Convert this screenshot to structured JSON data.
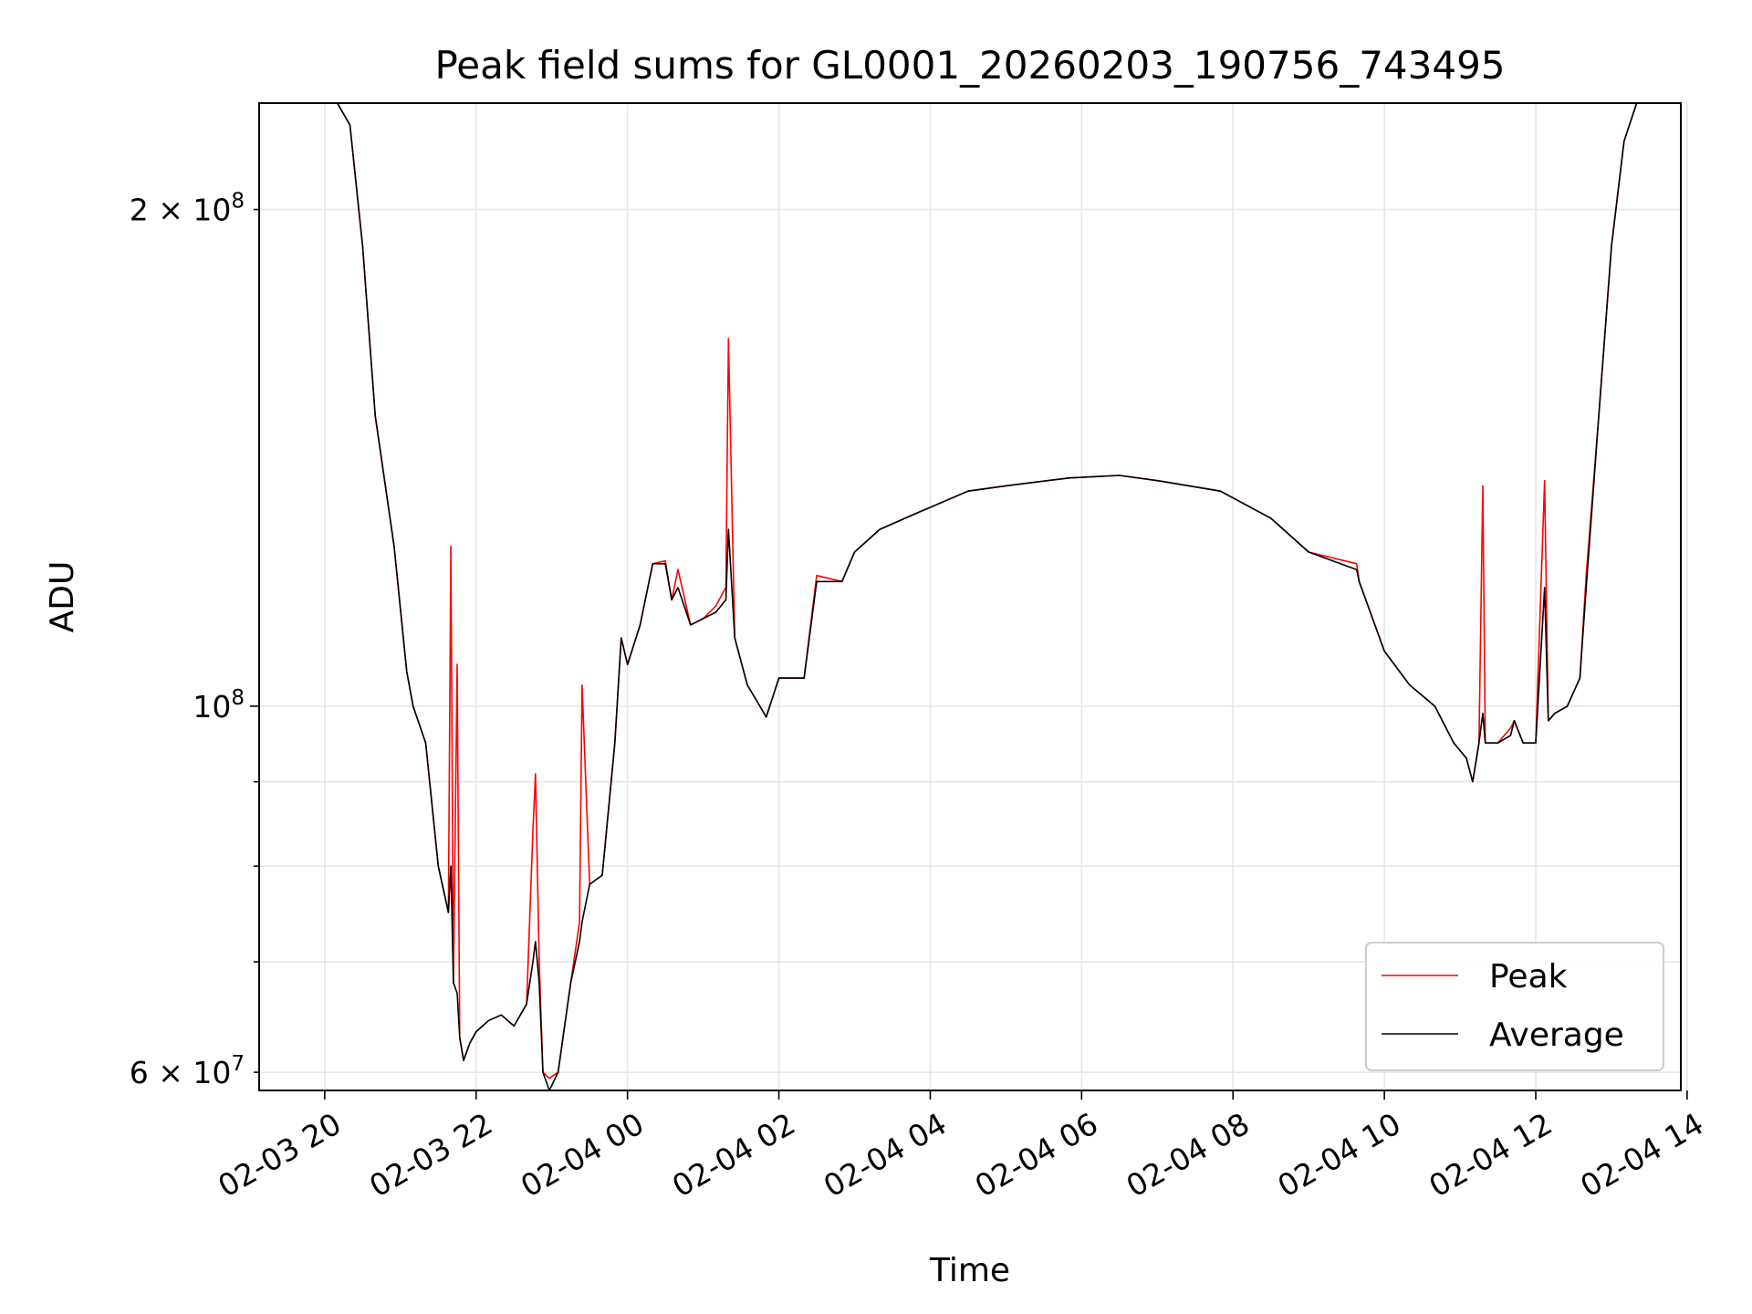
{
  "chart_data": {
    "type": "line",
    "title": "Peak field sums for GL0001_20260203_190756_743495",
    "xlabel": "Time",
    "ylabel": "ADU",
    "yscale": "log",
    "grid": true,
    "legend_position": "lower right",
    "xlim": [
      "2026-02-03 19:08",
      "2026-02-04 13:55"
    ],
    "ylim": [
      58500000,
      232000000
    ],
    "x_ticks": [
      "02-03 20",
      "02-03 22",
      "02-04 00",
      "02-04 02",
      "02-04 04",
      "02-04 06",
      "02-04 08",
      "02-04 10",
      "02-04 12",
      "02-04 14"
    ],
    "x_tick_values": [
      "2026-02-03 20:00",
      "2026-02-03 22:00",
      "2026-02-04 00:00",
      "2026-02-04 02:00",
      "2026-02-04 04:00",
      "2026-02-04 06:00",
      "2026-02-04 08:00",
      "2026-02-04 10:00",
      "2026-02-04 12:00",
      "2026-02-04 14:00"
    ],
    "y_major_ticks": [
      {
        "value": 100000000,
        "label_base": "10",
        "label_exp": "8"
      }
    ],
    "y_minor_ticks": [
      {
        "value": 60000000,
        "label_base": "6 × 10",
        "label_exp": "7"
      },
      {
        "value": 70000000
      },
      {
        "value": 80000000
      },
      {
        "value": 90000000
      },
      {
        "value": 200000000,
        "label_base": "2 × 10",
        "label_exp": "8"
      }
    ],
    "series": [
      {
        "name": "Peak",
        "color": "#ff0000",
        "x": [
          "2026-02-03 20:10",
          "2026-02-03 20:20",
          "2026-02-03 20:30",
          "2026-02-03 20:40",
          "2026-02-03 20:55",
          "2026-02-03 21:05",
          "2026-02-03 21:10",
          "2026-02-03 21:20",
          "2026-02-03 21:30",
          "2026-02-03 21:38",
          "2026-02-03 21:40",
          "2026-02-03 21:42",
          "2026-02-03 21:45",
          "2026-02-03 21:47",
          "2026-02-03 21:50",
          "2026-02-03 21:55",
          "2026-02-03 22:00",
          "2026-02-03 22:10",
          "2026-02-03 22:20",
          "2026-02-03 22:30",
          "2026-02-03 22:40",
          "2026-02-03 22:45",
          "2026-02-03 22:47",
          "2026-02-03 22:50",
          "2026-02-03 22:53",
          "2026-02-03 22:58",
          "2026-02-03 23:05",
          "2026-02-03 23:15",
          "2026-02-03 23:22",
          "2026-02-03 23:24",
          "2026-02-03 23:30",
          "2026-02-03 23:40",
          "2026-02-03 23:50",
          "2026-02-03 23:55",
          "2026-02-04 00:00",
          "2026-02-04 00:10",
          "2026-02-04 00:20",
          "2026-02-04 00:30",
          "2026-02-04 00:35",
          "2026-02-04 00:40",
          "2026-02-04 00:50",
          "2026-02-04 01:00",
          "2026-02-04 01:10",
          "2026-02-04 01:18",
          "2026-02-04 01:20",
          "2026-02-04 01:25",
          "2026-02-04 01:35",
          "2026-02-04 01:45",
          "2026-02-04 01:50",
          "2026-02-04 02:00",
          "2026-02-04 02:20",
          "2026-02-04 02:30",
          "2026-02-04 02:50",
          "2026-02-04 03:00",
          "2026-02-04 03:20",
          "2026-02-04 03:50",
          "2026-02-04 04:30",
          "2026-02-04 05:00",
          "2026-02-04 05:50",
          "2026-02-04 06:30",
          "2026-02-04 07:00",
          "2026-02-04 07:50",
          "2026-02-04 08:30",
          "2026-02-04 09:00",
          "2026-02-04 09:38",
          "2026-02-04 09:40",
          "2026-02-04 10:00",
          "2026-02-04 10:20",
          "2026-02-04 10:40",
          "2026-02-04 10:55",
          "2026-02-04 11:05",
          "2026-02-04 11:10",
          "2026-02-04 11:15",
          "2026-02-04 11:18",
          "2026-02-04 11:20",
          "2026-02-04 11:30",
          "2026-02-04 11:40",
          "2026-02-04 11:43",
          "2026-02-04 11:50",
          "2026-02-04 12:00",
          "2026-02-04 12:07",
          "2026-02-04 12:10",
          "2026-02-04 12:15",
          "2026-02-04 12:25",
          "2026-02-04 12:35",
          "2026-02-04 12:40",
          "2026-02-04 12:50",
          "2026-02-04 13:00",
          "2026-02-04 13:10",
          "2026-02-04 13:20",
          "2026-02-04 13:30",
          "2026-02-04 13:40",
          "2026-02-04 13:55"
        ],
        "y": [
          232000000,
          225000000,
          190000000,
          150000000,
          125000000,
          105000000,
          100000000,
          95000000,
          80000000,
          75000000,
          125000000,
          68000000,
          106000000,
          63000000,
          61000000,
          62500000,
          63500000,
          64500000,
          65000000,
          64000000,
          66000000,
          84000000,
          91000000,
          70000000,
          60000000,
          59500000,
          60000000,
          68000000,
          74000000,
          103000000,
          78000000,
          79000000,
          95000000,
          110000000,
          106000000,
          112000000,
          122000000,
          122500000,
          116000000,
          121000000,
          112000000,
          113000000,
          115000000,
          118000000,
          167000000,
          110000000,
          103000000,
          100000000,
          98500000,
          104000000,
          104000000,
          120000000,
          119000000,
          124000000,
          128000000,
          131000000,
          135000000,
          136000000,
          137500000,
          138000000,
          137000000,
          135000000,
          130000000,
          124000000,
          122000000,
          119000000,
          108000000,
          103000000,
          100000000,
          95000000,
          93000000,
          90000000,
          95000000,
          136000000,
          95000000,
          95000000,
          97000000,
          98000000,
          95000000,
          95000000,
          137000000,
          98000000,
          99000000,
          100000000,
          104000000,
          120000000,
          150000000,
          190000000,
          220000000,
          232000000,
          232000000,
          232000000,
          232000000
        ]
      },
      {
        "name": "Average",
        "color": "#000000",
        "x": [
          "2026-02-03 20:10",
          "2026-02-03 20:20",
          "2026-02-03 20:30",
          "2026-02-03 20:40",
          "2026-02-03 20:55",
          "2026-02-03 21:05",
          "2026-02-03 21:10",
          "2026-02-03 21:20",
          "2026-02-03 21:30",
          "2026-02-03 21:38",
          "2026-02-03 21:40",
          "2026-02-03 21:42",
          "2026-02-03 21:45",
          "2026-02-03 21:47",
          "2026-02-03 21:50",
          "2026-02-03 21:55",
          "2026-02-03 22:00",
          "2026-02-03 22:10",
          "2026-02-03 22:20",
          "2026-02-03 22:30",
          "2026-02-03 22:40",
          "2026-02-03 22:45",
          "2026-02-03 22:47",
          "2026-02-03 22:50",
          "2026-02-03 22:53",
          "2026-02-03 22:58",
          "2026-02-03 23:05",
          "2026-02-03 23:15",
          "2026-02-03 23:22",
          "2026-02-03 23:24",
          "2026-02-03 23:30",
          "2026-02-03 23:40",
          "2026-02-03 23:50",
          "2026-02-03 23:55",
          "2026-02-04 00:00",
          "2026-02-04 00:10",
          "2026-02-04 00:20",
          "2026-02-04 00:30",
          "2026-02-04 00:35",
          "2026-02-04 00:40",
          "2026-02-04 00:50",
          "2026-02-04 01:00",
          "2026-02-04 01:10",
          "2026-02-04 01:18",
          "2026-02-04 01:20",
          "2026-02-04 01:25",
          "2026-02-04 01:35",
          "2026-02-04 01:45",
          "2026-02-04 01:50",
          "2026-02-04 02:00",
          "2026-02-04 02:20",
          "2026-02-04 02:30",
          "2026-02-04 02:50",
          "2026-02-04 03:00",
          "2026-02-04 03:20",
          "2026-02-04 03:50",
          "2026-02-04 04:30",
          "2026-02-04 05:00",
          "2026-02-04 05:50",
          "2026-02-04 06:30",
          "2026-02-04 07:00",
          "2026-02-04 07:50",
          "2026-02-04 08:30",
          "2026-02-04 09:00",
          "2026-02-04 09:38",
          "2026-02-04 09:40",
          "2026-02-04 10:00",
          "2026-02-04 10:20",
          "2026-02-04 10:40",
          "2026-02-04 10:55",
          "2026-02-04 11:05",
          "2026-02-04 11:10",
          "2026-02-04 11:15",
          "2026-02-04 11:18",
          "2026-02-04 11:20",
          "2026-02-04 11:30",
          "2026-02-04 11:40",
          "2026-02-04 11:43",
          "2026-02-04 11:50",
          "2026-02-04 12:00",
          "2026-02-04 12:07",
          "2026-02-04 12:10",
          "2026-02-04 12:15",
          "2026-02-04 12:25",
          "2026-02-04 12:35",
          "2026-02-04 12:40",
          "2026-02-04 12:50",
          "2026-02-04 13:00",
          "2026-02-04 13:10",
          "2026-02-04 13:20",
          "2026-02-04 13:30",
          "2026-02-04 13:40",
          "2026-02-04 13:55"
        ],
        "y": [
          232000000,
          225000000,
          190000000,
          150000000,
          125000000,
          105000000,
          100000000,
          95000000,
          80000000,
          75000000,
          80000000,
          68000000,
          67000000,
          63000000,
          61000000,
          62500000,
          63500000,
          64500000,
          65000000,
          64000000,
          66000000,
          70000000,
          72000000,
          68000000,
          60000000,
          58500000,
          60000000,
          68000000,
          72000000,
          74000000,
          78000000,
          79000000,
          95000000,
          110000000,
          106000000,
          112000000,
          122000000,
          122000000,
          116000000,
          118000000,
          112000000,
          113000000,
          114000000,
          116000000,
          128000000,
          110000000,
          103000000,
          100000000,
          98500000,
          104000000,
          104000000,
          119000000,
          119000000,
          124000000,
          128000000,
          131000000,
          135000000,
          136000000,
          137500000,
          138000000,
          137000000,
          135000000,
          130000000,
          124000000,
          121000000,
          119000000,
          108000000,
          103000000,
          100000000,
          95000000,
          93000000,
          90000000,
          95000000,
          99000000,
          95000000,
          95000000,
          96000000,
          98000000,
          95000000,
          95000000,
          118000000,
          98000000,
          99000000,
          100000000,
          104000000,
          118000000,
          150000000,
          190000000,
          220000000,
          232000000,
          232000000,
          232000000,
          232000000
        ]
      }
    ]
  }
}
